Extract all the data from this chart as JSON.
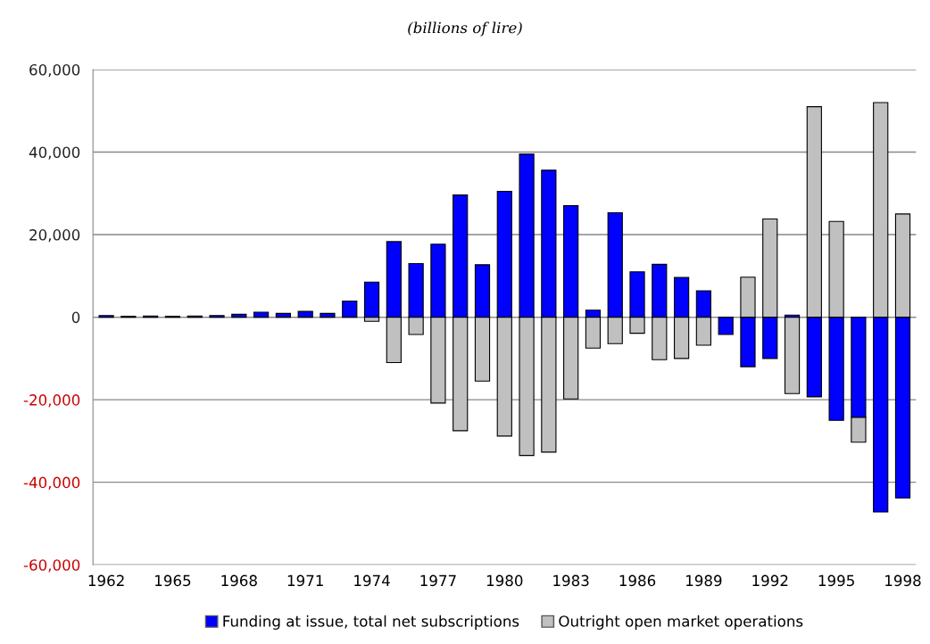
{
  "chart_data": {
    "type": "bar",
    "title": "(billions of lire)",
    "stacked": true,
    "grid": "y",
    "legend": "bottom",
    "categories": [
      "1962",
      null,
      null,
      "1965",
      null,
      null,
      "1968",
      null,
      null,
      "1971",
      null,
      null,
      "1974",
      null,
      null,
      "1977",
      null,
      null,
      "1980",
      null,
      null,
      "1983",
      null,
      null,
      "1986",
      null,
      null,
      "1989",
      null,
      null,
      "1992",
      null,
      null,
      "1995",
      null,
      null,
      "1998"
    ],
    "series": [
      {
        "name": "Funding at issue, total net subscriptions",
        "color": "#0000ff",
        "values": [
          400,
          200,
          300,
          200,
          300,
          400,
          700,
          1200,
          900,
          1400,
          900,
          3900,
          8500,
          18300,
          13000,
          17700,
          29600,
          12700,
          30500,
          39500,
          35600,
          27000,
          1700,
          25300,
          11000,
          12800,
          9600,
          6400,
          -4200,
          -12000,
          -10000,
          500,
          -19300,
          -25000,
          -24300,
          -47200,
          -43800
        ]
      },
      {
        "name": "Outright open market operations",
        "color": "#c0c0c0",
        "values": [
          null,
          null,
          null,
          null,
          null,
          null,
          null,
          null,
          null,
          null,
          null,
          null,
          -1000,
          -11000,
          -4200,
          -20800,
          -27500,
          -15500,
          -28800,
          -33500,
          -32700,
          -19800,
          -7500,
          -6400,
          -3900,
          -10300,
          -10000,
          -6800,
          null,
          9700,
          23800,
          -18500,
          51000,
          23200,
          -6000,
          52000,
          25000
        ]
      }
    ],
    "ylim": [
      -60000,
      60000
    ],
    "yticks": [
      {
        "value": -60000,
        "label": "-60,000"
      },
      {
        "value": -40000,
        "label": "-40,000"
      },
      {
        "value": -20000,
        "label": "-20,000"
      },
      {
        "value": 0,
        "label": "0"
      },
      {
        "value": 20000,
        "label": "20,000"
      },
      {
        "value": 40000,
        "label": "40,000"
      },
      {
        "value": 60000,
        "label": "60,000"
      }
    ]
  }
}
